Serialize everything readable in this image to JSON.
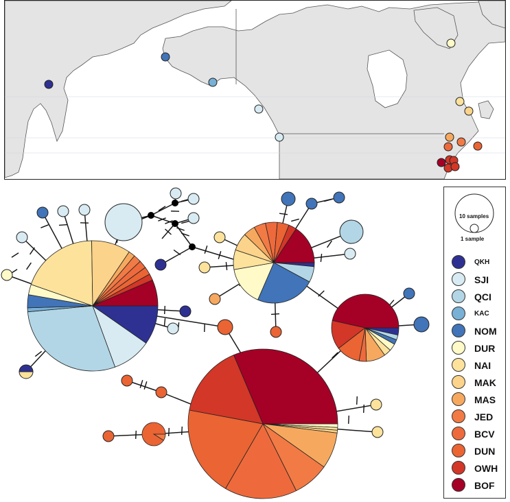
{
  "map": {
    "land_color": "#e4e4e4",
    "sample_sites": [
      {
        "pop": "QKH"
      },
      {
        "pop": "NOM"
      },
      {
        "pop": "KAC"
      },
      {
        "pop": "SJI"
      },
      {
        "pop": "SJI"
      },
      {
        "pop": "DUR"
      },
      {
        "pop": "NAI"
      },
      {
        "pop": "MAK"
      },
      {
        "pop": "MAS"
      },
      {
        "pop": "JED"
      },
      {
        "pop": "BCV"
      },
      {
        "pop": "DUN"
      },
      {
        "pop": "OWH"
      },
      {
        "pop": "BOF"
      }
    ]
  },
  "legend": {
    "size_large_label": "10 samples",
    "size_small_label": "1 sample",
    "populations": [
      {
        "code": "QKH",
        "color": "#2e3192"
      },
      {
        "code": "SJI",
        "color": "#d8ebf2"
      },
      {
        "code": "QCI",
        "color": "#b2d6e6"
      },
      {
        "code": "KAC",
        "color": "#78b0d6"
      },
      {
        "code": "NOM",
        "color": "#4174b8"
      },
      {
        "code": "DUR",
        "color": "#fffac8"
      },
      {
        "code": "NAI",
        "color": "#fde29c"
      },
      {
        "code": "MAK",
        "color": "#fbd38a"
      },
      {
        "code": "MAS",
        "color": "#f6a95e"
      },
      {
        "code": "JED",
        "color": "#f27a45"
      },
      {
        "code": "BCV",
        "color": "#ee6a3c"
      },
      {
        "code": "DUN",
        "color": "#ea6434"
      },
      {
        "code": "OWH",
        "color": "#d33727"
      },
      {
        "code": "BOF",
        "color": "#a50026"
      }
    ]
  },
  "network": {
    "haplotypes": [
      {
        "id": "H1",
        "counts": {
          "QKH": 3,
          "SJI": 3,
          "QCI": 9,
          "KAC": 0.3,
          "NOM": 1,
          "DUR": 0.8,
          "NAI": 6,
          "MAK": 3,
          "MAS": 0.5,
          "JED": 0.6,
          "BCV": 0.6,
          "DUN": 0.6,
          "OWH": 0.5,
          "BOF": 2
        }
      },
      {
        "id": "H2",
        "counts": {
          "NOM": 3,
          "QCI": 0.8,
          "QKH": 0.2,
          "BOF": 2,
          "OWH": 0.4,
          "DUN": 0.6,
          "BCV": 0.6,
          "JED": 0.6,
          "MAS": 0.6,
          "MAK": 0.9,
          "NAI": 1,
          "DUR": 2
        }
      },
      {
        "id": "H3",
        "counts": {
          "QKH": 0.3,
          "BOF": 4,
          "OWH": 1.2,
          "DUN": 1,
          "BCV": 0.3,
          "MAS": 0.8,
          "DUR": 0.3,
          "NAI": 0.3,
          "QCI": 0.2,
          "NOM": 0.2
        }
      },
      {
        "id": "H4",
        "counts": {
          "BOF": 8,
          "OWH": 4,
          "DUN": 5,
          "BCV": 4,
          "JED": 2,
          "MAS": 2,
          "MAK": 0.15,
          "NAI": 0.15,
          "DUR": 0.2
        }
      },
      {
        "id": "H5",
        "counts": {
          "SJI": 1
        }
      },
      {
        "id": "H6",
        "counts": {
          "QCI": 1
        }
      },
      {
        "id": "H7",
        "counts": {
          "DUN": 1,
          "JED": 0.1
        }
      }
    ],
    "vertex_color": "#000000",
    "edge_color": "#1a1a1a"
  }
}
